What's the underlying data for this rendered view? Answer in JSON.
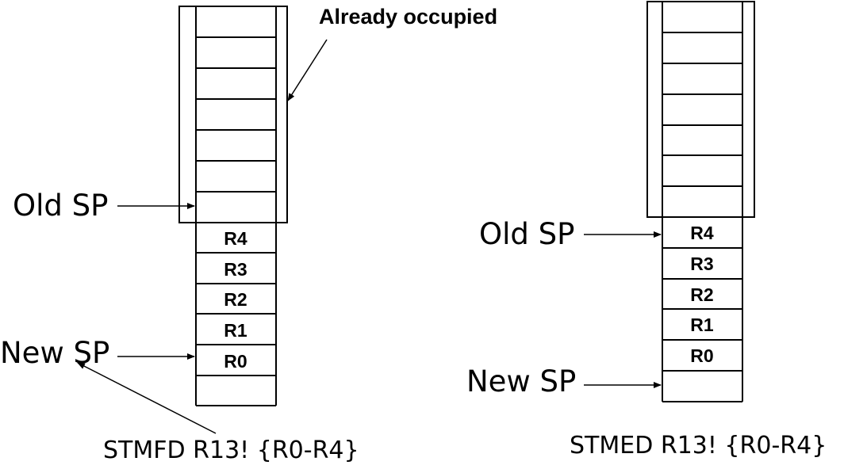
{
  "annotation": {
    "text": "Already occupied"
  },
  "stacks": [
    {
      "old_sp_label": "Old SP",
      "new_sp_label": "New SP",
      "registers": [
        "R4",
        "R3",
        "R2",
        "R1",
        "R0"
      ],
      "caption": "STMFD R13! {R0-R4}"
    },
    {
      "old_sp_label": "Old SP",
      "new_sp_label": "New SP",
      "registers": [
        "R4",
        "R3",
        "R2",
        "R1",
        "R0"
      ],
      "caption": "STMED R13! {R0-R4}"
    }
  ]
}
